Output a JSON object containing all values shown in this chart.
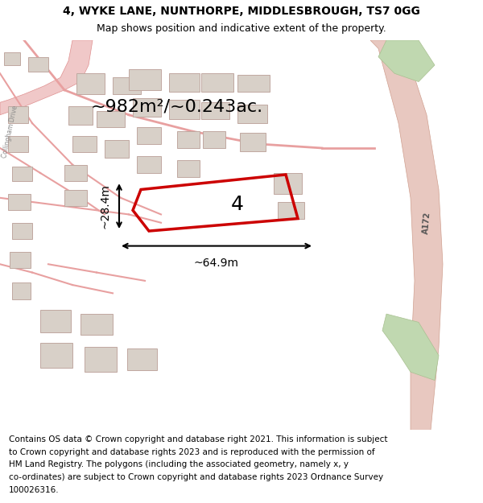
{
  "title_line1": "4, WYKE LANE, NUNTHORPE, MIDDLESBROUGH, TS7 0GG",
  "title_line2": "Map shows position and indicative extent of the property.",
  "footer_lines": [
    "Contains OS data © Crown copyright and database right 2021. This information is subject",
    "to Crown copyright and database rights 2023 and is reproduced with the permission of",
    "HM Land Registry. The polygons (including the associated geometry, namely x, y",
    "co-ordinates) are subject to Crown copyright and database rights 2023 Ordnance Survey",
    "100026316."
  ],
  "area_text": "~982m²/~0.243ac.",
  "width_label": "~64.9m",
  "height_label": "~28.4m",
  "property_label": "4",
  "map_bg": "#f2ede8",
  "road_color": "#f0c8c8",
  "road_edge": "#e09090",
  "building_color": "#d8d0c8",
  "building_edge": "#c0a8a0",
  "green_color": "#c0d8b0",
  "green_edge": "#a8c090",
  "property_outline_color": "#cc0000",
  "title_fontsize": 10,
  "subtitle_fontsize": 9,
  "footer_fontsize": 7.5,
  "area_fontsize": 16,
  "dim_fontsize": 10,
  "prop_label_fontsize": 18
}
